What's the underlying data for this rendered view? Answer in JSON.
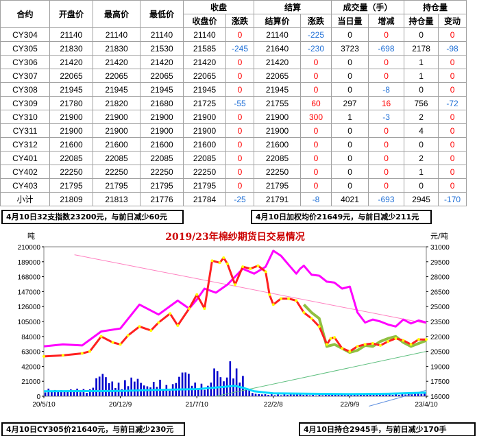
{
  "table": {
    "header_top": {
      "contract": "合约",
      "open": "开盘价",
      "high": "最高价",
      "low": "最低价",
      "close_group": "收盘",
      "settle_group": "结算",
      "volume_group": "成交量（手）",
      "oi_group": "持仓量"
    },
    "header_sub": {
      "close_price": "收盘价",
      "close_change": "涨跌",
      "settle_price": "结算价",
      "settle_change": "涨跌",
      "volume_today": "当日量",
      "volume_change": "增减",
      "oi": "持仓量",
      "oi_change": "变动"
    },
    "rows": [
      {
        "contract": "CY304",
        "open": "21140",
        "high": "21140",
        "low": "21140",
        "close": "21140",
        "close_chg": "0",
        "settle": "21140",
        "settle_chg": "-225",
        "vol": "0",
        "vol_chg": "0",
        "oi": "0",
        "oi_chg": "0"
      },
      {
        "contract": "CY305",
        "open": "21830",
        "high": "21830",
        "low": "21530",
        "close": "21585",
        "close_chg": "-245",
        "settle": "21640",
        "settle_chg": "-230",
        "vol": "3723",
        "vol_chg": "-698",
        "oi": "2178",
        "oi_chg": "-98"
      },
      {
        "contract": "CY306",
        "open": "21420",
        "high": "21420",
        "low": "21420",
        "close": "21420",
        "close_chg": "0",
        "settle": "21420",
        "settle_chg": "0",
        "vol": "0",
        "vol_chg": "0",
        "oi": "1",
        "oi_chg": "0"
      },
      {
        "contract": "CY307",
        "open": "22065",
        "high": "22065",
        "low": "22065",
        "close": "22065",
        "close_chg": "0",
        "settle": "22065",
        "settle_chg": "0",
        "vol": "0",
        "vol_chg": "0",
        "oi": "1",
        "oi_chg": "0"
      },
      {
        "contract": "CY308",
        "open": "21945",
        "high": "21945",
        "low": "21945",
        "close": "21945",
        "close_chg": "0",
        "settle": "21945",
        "settle_chg": "0",
        "vol": "0",
        "vol_chg": "-8",
        "oi": "0",
        "oi_chg": "0"
      },
      {
        "contract": "CY309",
        "open": "21780",
        "high": "21820",
        "low": "21680",
        "close": "21725",
        "close_chg": "-55",
        "settle": "21755",
        "settle_chg": "60",
        "vol": "297",
        "vol_chg": "16",
        "oi": "756",
        "oi_chg": "-72"
      },
      {
        "contract": "CY310",
        "open": "21900",
        "high": "21900",
        "low": "21900",
        "close": "21900",
        "close_chg": "0",
        "settle": "21900",
        "settle_chg": "300",
        "vol": "1",
        "vol_chg": "-3",
        "oi": "2",
        "oi_chg": "0"
      },
      {
        "contract": "CY311",
        "open": "21900",
        "high": "21900",
        "low": "21900",
        "close": "21900",
        "close_chg": "0",
        "settle": "21900",
        "settle_chg": "0",
        "vol": "0",
        "vol_chg": "0",
        "oi": "4",
        "oi_chg": "0"
      },
      {
        "contract": "CY312",
        "open": "21600",
        "high": "21600",
        "low": "21600",
        "close": "21600",
        "close_chg": "0",
        "settle": "21600",
        "settle_chg": "0",
        "vol": "0",
        "vol_chg": "0",
        "oi": "0",
        "oi_chg": "0"
      },
      {
        "contract": "CY401",
        "open": "22085",
        "high": "22085",
        "low": "22085",
        "close": "22085",
        "close_chg": "0",
        "settle": "22085",
        "settle_chg": "0",
        "vol": "0",
        "vol_chg": "0",
        "oi": "2",
        "oi_chg": "0"
      },
      {
        "contract": "CY402",
        "open": "22250",
        "high": "22250",
        "low": "22250",
        "close": "22250",
        "close_chg": "0",
        "settle": "22250",
        "settle_chg": "0",
        "vol": "0",
        "vol_chg": "0",
        "oi": "1",
        "oi_chg": "0"
      },
      {
        "contract": "CY403",
        "open": "21795",
        "high": "21795",
        "low": "21795",
        "close": "21795",
        "close_chg": "0",
        "settle": "21795",
        "settle_chg": "0",
        "vol": "0",
        "vol_chg": "0",
        "oi": "0",
        "oi_chg": "0"
      },
      {
        "contract": "小计",
        "open": "21809",
        "high": "21813",
        "low": "21776",
        "close": "21784",
        "close_chg": "-25",
        "settle": "21791",
        "settle_chg": "-8",
        "vol": "4021",
        "vol_chg": "-693",
        "oi": "2945",
        "oi_chg": "-170"
      }
    ]
  },
  "notes": {
    "index": "4月10日32支指数23200元，与前日减少60元",
    "weighted": "4月10日加权均价21649元，与前日减少211元",
    "cy305": "4月10日CY305价21640元，与前日减少230元",
    "oi": "4月10日持仓2945手，与前日减少170手"
  },
  "chart_data": {
    "type": "line",
    "title": "2019/23年棉纱期货日交易情况",
    "left_axis_label": "吨",
    "right_axis_label": "元/吨",
    "left_ticks": [
      "0",
      "21000",
      "42000",
      "63000",
      "84000",
      "105000",
      "126000",
      "147000",
      "168000",
      "189000",
      "210000"
    ],
    "right_ticks": [
      "16000",
      "17500",
      "19000",
      "20500",
      "22000",
      "23500",
      "25000",
      "26500",
      "28000",
      "29500",
      "31000"
    ],
    "left_range": [
      0,
      210000
    ],
    "right_range": [
      16000,
      31000
    ],
    "x_ticks": [
      "20/5/10",
      "20/12/9",
      "21/7/10",
      "22/2/8",
      "22/9/9",
      "23/4/10"
    ],
    "x_range": [
      0,
      100
    ],
    "colors": {
      "index": "#ff00ff",
      "settle": "#ff2020",
      "dot": "#ffff00",
      "cy305": "#90c040",
      "volume": "#0000cc",
      "oi": "#00d8ff",
      "trend1": "#ff80c0",
      "trend2": "#60c080",
      "trend3": "#6090e0",
      "title": "#cc0000",
      "bg": "#ffffff"
    },
    "series": [
      {
        "key": "index",
        "x": [
          0,
          5,
          10,
          15,
          20,
          25,
          30,
          35,
          38,
          40,
          42,
          45,
          48,
          52,
          55,
          58,
          60,
          62,
          64,
          66,
          67,
          68,
          70,
          72,
          74,
          76,
          78,
          80,
          82,
          84,
          86,
          88,
          90,
          92,
          94,
          96,
          98,
          100
        ],
        "y": [
          21000,
          21200,
          21100,
          22500,
          22800,
          25200,
          24200,
          25600,
          24800,
          25700,
          26800,
          26400,
          27200,
          28800,
          28300,
          29000,
          30600,
          30100,
          29200,
          28300,
          28800,
          29100,
          28200,
          28100,
          27500,
          27400,
          26800,
          27000,
          24400,
          23400,
          23700,
          23500,
          23200,
          23000,
          23700,
          23300,
          23600,
          23400
        ]
      },
      {
        "key": "settle",
        "x": [
          0,
          5,
          10,
          12,
          15,
          18,
          20,
          22,
          25,
          28,
          30,
          33,
          35,
          38,
          40,
          42,
          44,
          46,
          47,
          48,
          50,
          52,
          54,
          56,
          58,
          59,
          60,
          62,
          64,
          66,
          68,
          70,
          72,
          74,
          75,
          76,
          78,
          80,
          82,
          84,
          86,
          88,
          90,
          92,
          94,
          96,
          98,
          100
        ],
        "y": [
          20000,
          20100,
          20300,
          20500,
          22000,
          21400,
          21200,
          22100,
          23000,
          22600,
          23400,
          24300,
          23100,
          24800,
          26200,
          24800,
          29600,
          29400,
          29900,
          29300,
          27200,
          29000,
          28800,
          29100,
          28500,
          26200,
          25200,
          25800,
          25800,
          25600,
          24400,
          23800,
          23000,
          21200,
          21800,
          21900,
          20800,
          20500,
          21000,
          21200,
          21300,
          21100,
          21500,
          21800,
          21600,
          21200,
          21700,
          21700
        ]
      },
      {
        "key": "cy305",
        "x": [
          68,
          70,
          72,
          74,
          76,
          78,
          80,
          82,
          84,
          86,
          88,
          90,
          92,
          94,
          96,
          98,
          100
        ],
        "y": [
          25200,
          24400,
          23800,
          21000,
          21200,
          20800,
          20400,
          20600,
          21100,
          21000,
          21500,
          21800,
          22000,
          21400,
          21000,
          21300,
          21600
        ]
      },
      {
        "key": "oi",
        "x": [
          0,
          10,
          20,
          30,
          40,
          50,
          52,
          55,
          60,
          70,
          80,
          90,
          100
        ],
        "y": [
          7000,
          7200,
          7500,
          9000,
          10000,
          14500,
          12000,
          7000,
          4000,
          3500,
          3000,
          3500,
          5000
        ]
      },
      {
        "key": "volume",
        "x": [
          0,
          3,
          6,
          9,
          12,
          15,
          17,
          19,
          21,
          24,
          27,
          30,
          33,
          35,
          37,
          39,
          41,
          43,
          45,
          47,
          49,
          50,
          51,
          52,
          53,
          55,
          58,
          62,
          66,
          70,
          74,
          78,
          82,
          86,
          90,
          94,
          97,
          100
        ],
        "y": [
          12000,
          9000,
          10000,
          11000,
          9000,
          40000,
          25000,
          18000,
          22000,
          30000,
          15000,
          25000,
          12000,
          28000,
          45000,
          20000,
          18000,
          15000,
          50000,
          22000,
          55000,
          35000,
          45000,
          30000,
          15000,
          4000,
          3000,
          2500,
          3000,
          2000,
          2500,
          2000,
          3000,
          2500,
          4000,
          3000,
          5000,
          4000
        ]
      }
    ],
    "trend_lines": [
      {
        "key": "trend1",
        "from": [
          8,
          30200
        ],
        "to": [
          100,
          23300
        ]
      },
      {
        "key": "trend2",
        "from": [
          45,
          16000
        ],
        "to": [
          100,
          20500
        ]
      },
      {
        "key": "trend3",
        "from": [
          85,
          15000
        ],
        "to": [
          100,
          16600
        ]
      }
    ],
    "grid": false
  }
}
